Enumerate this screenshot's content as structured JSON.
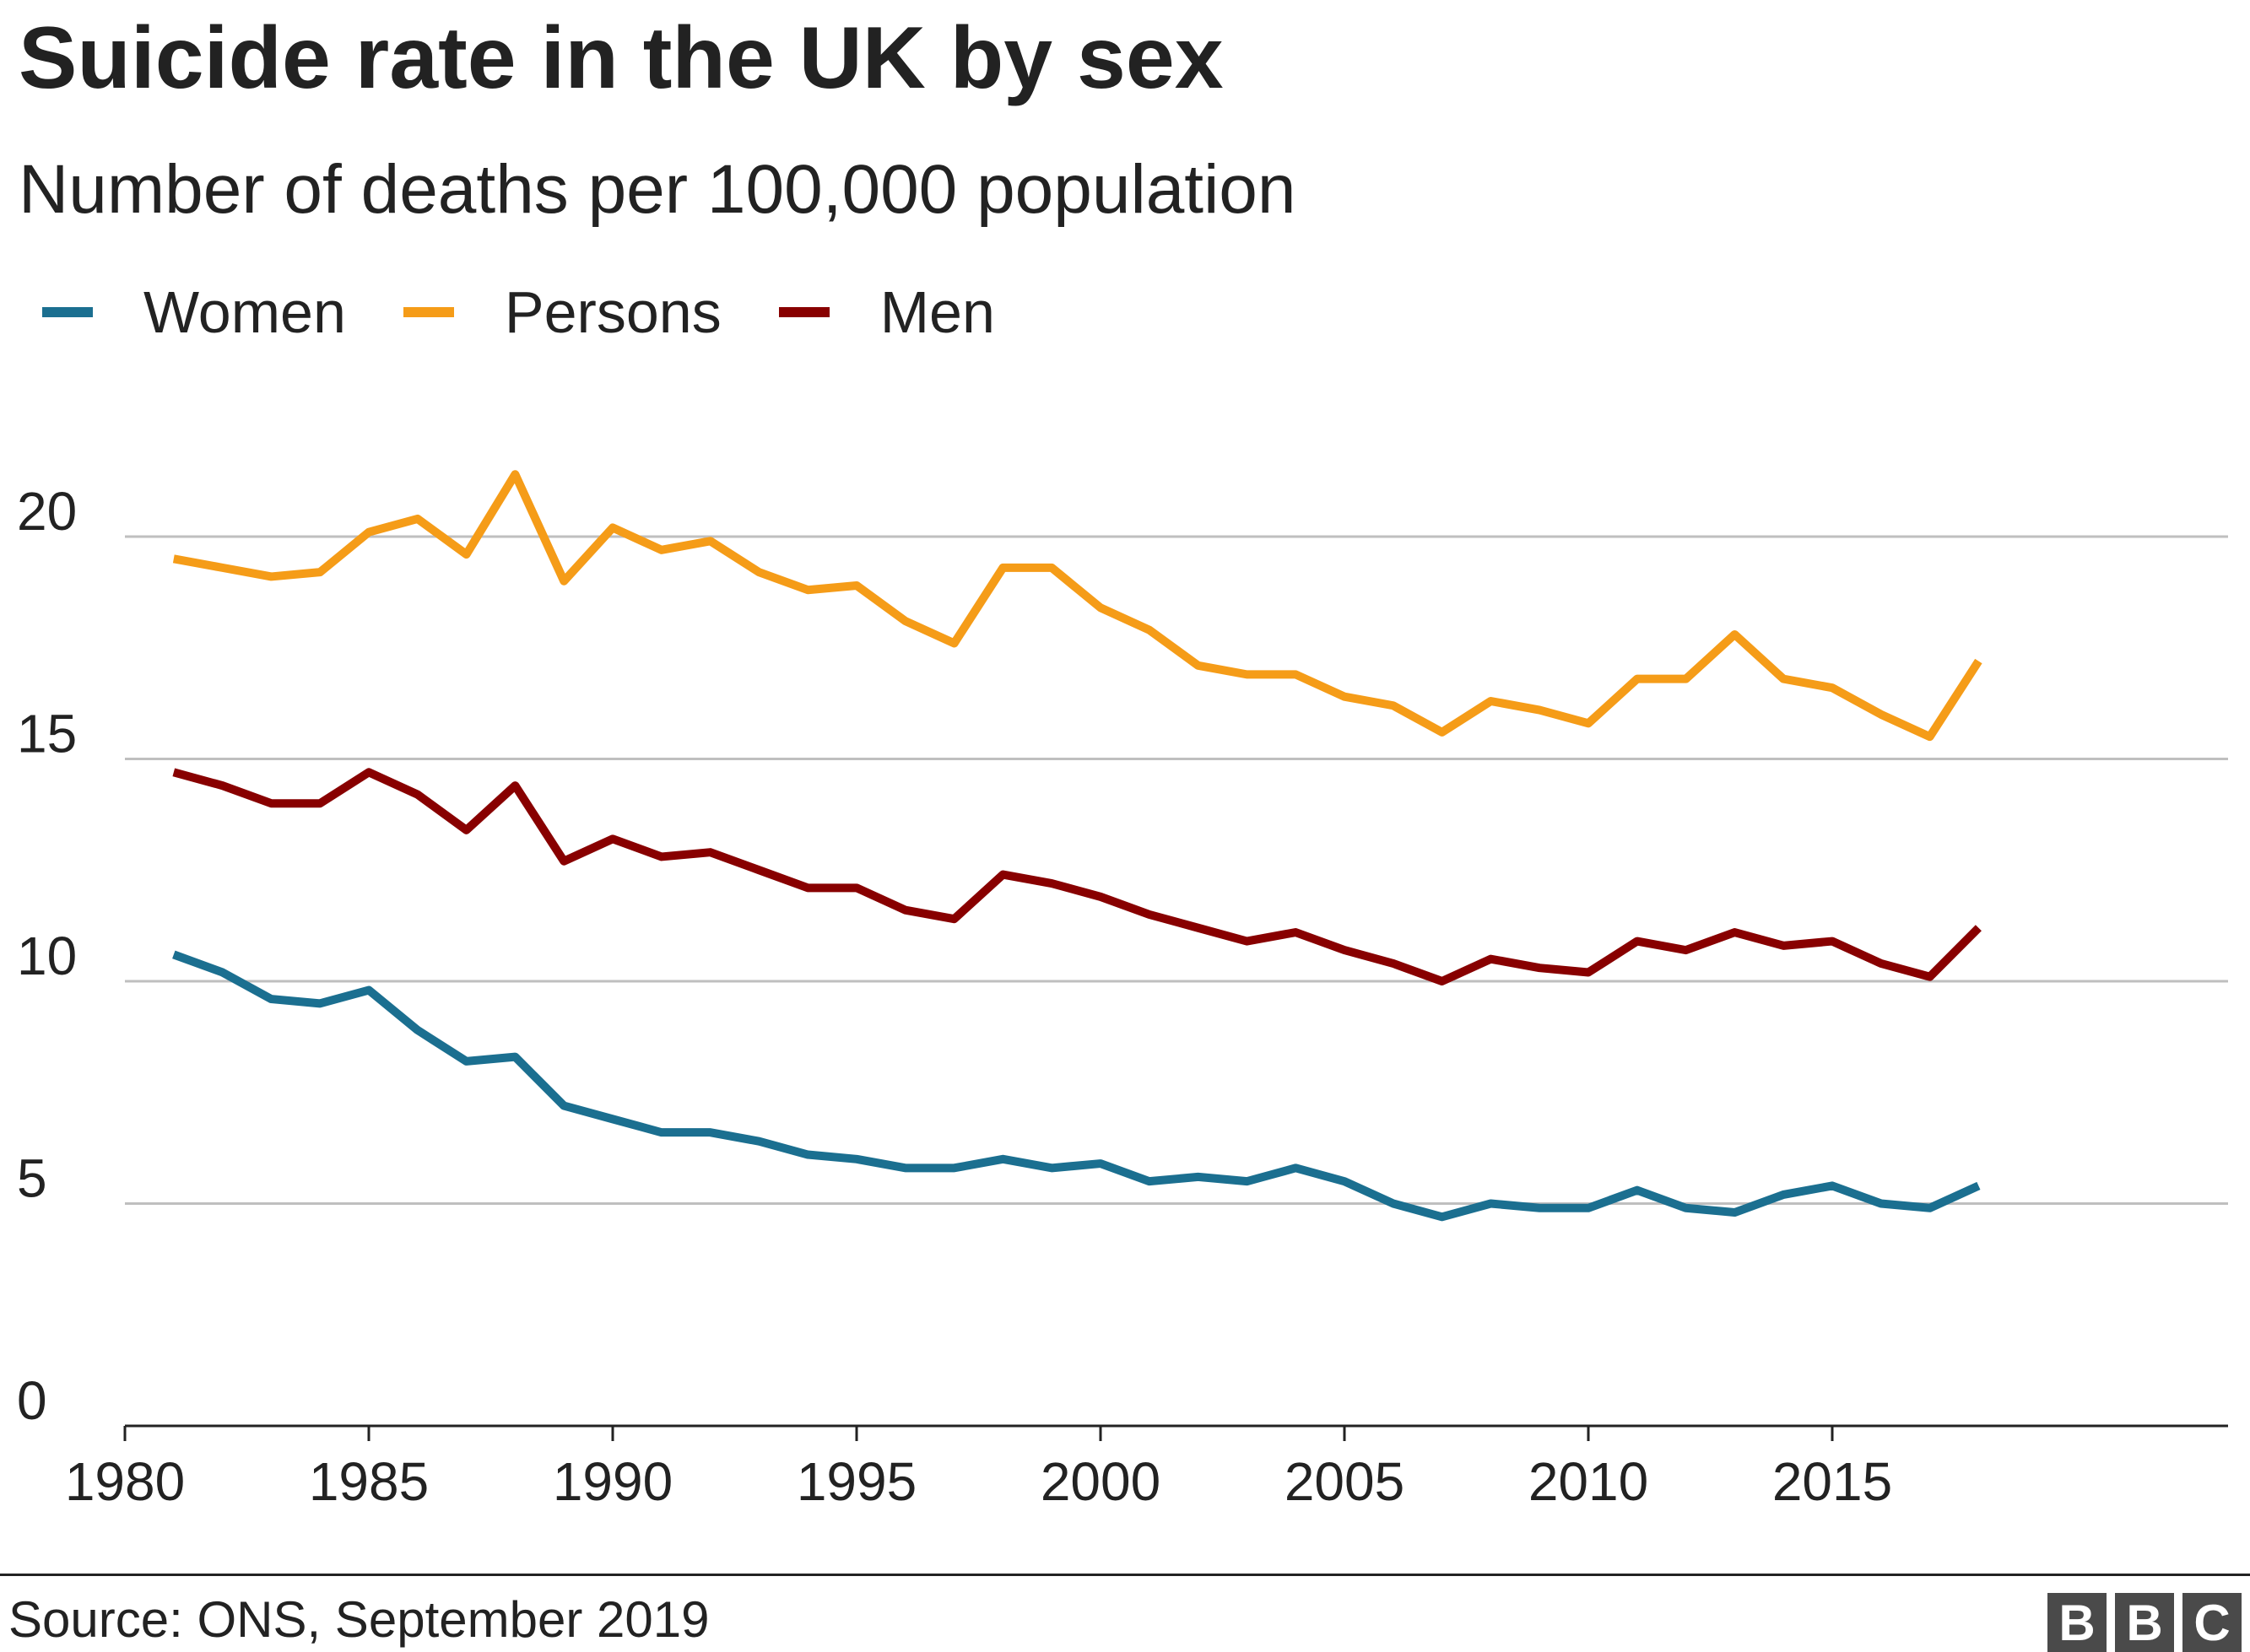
{
  "chart_data": {
    "type": "line",
    "title": "Suicide rate in the UK by sex",
    "subtitle": "Number of deaths per 100,000 population",
    "xlabel": "",
    "ylabel": "",
    "xlim": [
      1980,
      2023
    ],
    "ylim": [
      0,
      22
    ],
    "x_ticks": [
      1980,
      1985,
      1990,
      1995,
      2000,
      2005,
      2010,
      2015
    ],
    "y_ticks": [
      0,
      5,
      10,
      15,
      20
    ],
    "grid": "horizontal",
    "legend_placement": "top-left",
    "x": [
      1981,
      1982,
      1983,
      1984,
      1985,
      1986,
      1987,
      1988,
      1989,
      1990,
      1991,
      1992,
      1993,
      1994,
      1995,
      1996,
      1997,
      1998,
      1999,
      2000,
      2001,
      2002,
      2003,
      2004,
      2005,
      2006,
      2007,
      2008,
      2009,
      2010,
      2011,
      2012,
      2013,
      2014,
      2015,
      2016,
      2017,
      2018
    ],
    "series": [
      {
        "name": "Women",
        "color": "#1b6f90",
        "values": [
          10.6,
          10.2,
          9.6,
          9.5,
          9.8,
          8.9,
          8.2,
          8.3,
          7.2,
          6.9,
          6.6,
          6.6,
          6.4,
          6.1,
          6.0,
          5.8,
          5.8,
          6.0,
          5.8,
          5.9,
          5.5,
          5.6,
          5.5,
          5.8,
          5.5,
          5.0,
          4.7,
          5.0,
          4.9,
          4.9,
          5.3,
          4.9,
          4.8,
          5.2,
          5.4,
          5.0,
          4.9,
          5.4
        ]
      },
      {
        "name": "Persons",
        "color": "#f59c18",
        "values": [
          19.5,
          19.3,
          19.1,
          19.2,
          20.1,
          20.4,
          19.6,
          21.4,
          19.0,
          20.2,
          19.7,
          19.9,
          19.2,
          18.8,
          18.9,
          18.1,
          17.6,
          19.3,
          19.3,
          18.4,
          17.9,
          17.1,
          16.9,
          16.9,
          16.4,
          16.2,
          15.6,
          16.3,
          16.1,
          15.8,
          16.8,
          16.8,
          17.8,
          16.8,
          16.6,
          16.0,
          15.5,
          17.2
        ]
      },
      {
        "name": "Men",
        "color": "#880000",
        "values": [
          14.7,
          14.4,
          14.0,
          14.0,
          14.7,
          14.2,
          13.4,
          14.4,
          12.7,
          13.2,
          12.8,
          12.9,
          12.5,
          12.1,
          12.1,
          11.6,
          11.4,
          12.4,
          12.2,
          11.9,
          11.5,
          11.2,
          10.9,
          11.1,
          10.7,
          10.4,
          10.0,
          10.5,
          10.3,
          10.2,
          10.9,
          10.7,
          11.1,
          10.8,
          10.9,
          10.4,
          10.1,
          11.2
        ]
      }
    ]
  },
  "footer": {
    "source": "Source: ONS, September 2019",
    "logo": [
      "B",
      "B",
      "C"
    ]
  }
}
